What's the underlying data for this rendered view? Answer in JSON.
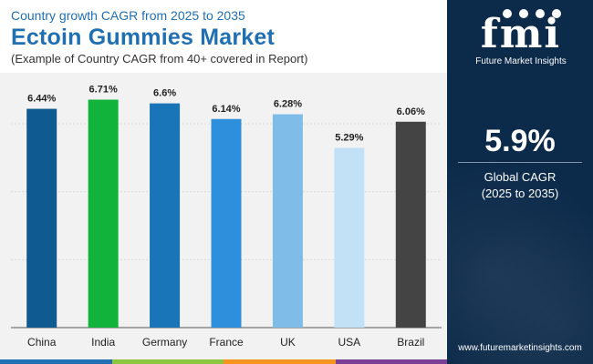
{
  "header": {
    "top_line": "Country growth CAGR from 2025 to 2035",
    "title": "Ectoin Gummies Market",
    "note": "(Example of Country CAGR from 40+ covered in Report)"
  },
  "sidebar": {
    "logo_text": "fmi",
    "logo_sub": "Future Market Insights",
    "cagr_value": "5.9%",
    "cagr_label": "Global CAGR",
    "cagr_period": "(2025 to 2035)",
    "website": "www.futuremarketinsights.com"
  },
  "colors": {
    "accent": "#1f6fb2",
    "sidebar_bg": "#0c2a4a",
    "strip": [
      "#1f6fb2",
      "#8cc63f",
      "#f7941d",
      "#7b3f98"
    ]
  },
  "chart_data": {
    "type": "bar",
    "title": "Ectoin Gummies Market",
    "xlabel": "",
    "ylabel": "",
    "ylim": [
      0,
      7.5
    ],
    "grid": true,
    "categories": [
      "China",
      "India",
      "Germany",
      "France",
      "UK",
      "USA",
      "Brazil"
    ],
    "values": [
      6.44,
      6.71,
      6.6,
      6.14,
      6.28,
      5.29,
      6.06
    ],
    "labels": [
      "6.44%",
      "6.71%",
      "6.6%",
      "6.14%",
      "6.28%",
      "5.29%",
      "6.06%"
    ],
    "bar_colors": [
      "#0e5a91",
      "#11b33a",
      "#1a74b8",
      "#2e90dc",
      "#7fbde8",
      "#c3e1f6",
      "#444444"
    ]
  }
}
